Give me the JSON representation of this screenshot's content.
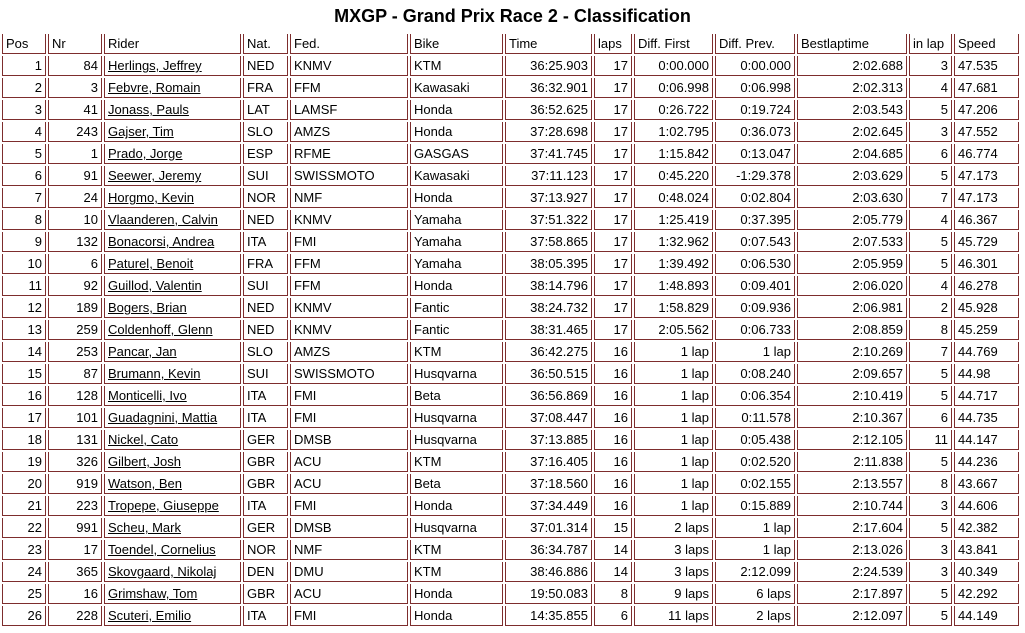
{
  "title": "MXGP - Grand Prix Race 2 - Classification",
  "colors": {
    "border": "#7d2d2d",
    "text": "#000000",
    "background": "#ffffff"
  },
  "table": {
    "columns": [
      {
        "key": "pos",
        "label": "Pos",
        "align": "right"
      },
      {
        "key": "nr",
        "label": "Nr",
        "align": "right"
      },
      {
        "key": "rider",
        "label": "Rider",
        "align": "left"
      },
      {
        "key": "nat",
        "label": "Nat.",
        "align": "left"
      },
      {
        "key": "fed",
        "label": "Fed.",
        "align": "left"
      },
      {
        "key": "bike",
        "label": "Bike",
        "align": "left"
      },
      {
        "key": "time",
        "label": "Time",
        "align": "right"
      },
      {
        "key": "laps",
        "label": "laps",
        "align": "right"
      },
      {
        "key": "diff_first",
        "label": "Diff. First",
        "align": "right"
      },
      {
        "key": "diff_prev",
        "label": "Diff. Prev.",
        "align": "right"
      },
      {
        "key": "bestlaptime",
        "label": "Bestlaptime",
        "align": "right"
      },
      {
        "key": "in_lap",
        "label": "in lap",
        "align": "right"
      },
      {
        "key": "speed",
        "label": "Speed",
        "align": "left"
      }
    ],
    "rows": [
      {
        "pos": "1",
        "nr": "84",
        "rider": "Herlings, Jeffrey",
        "nat": "NED",
        "fed": "KNMV",
        "bike": "KTM",
        "time": "36:25.903",
        "laps": "17",
        "diff_first": "0:00.000",
        "diff_prev": "0:00.000",
        "bestlaptime": "2:02.688",
        "in_lap": "3",
        "speed": "47.535"
      },
      {
        "pos": "2",
        "nr": "3",
        "rider": "Febvre, Romain",
        "nat": "FRA",
        "fed": "FFM",
        "bike": "Kawasaki",
        "time": "36:32.901",
        "laps": "17",
        "diff_first": "0:06.998",
        "diff_prev": "0:06.998",
        "bestlaptime": "2:02.313",
        "in_lap": "4",
        "speed": "47.681"
      },
      {
        "pos": "3",
        "nr": "41",
        "rider": "Jonass, Pauls",
        "nat": "LAT",
        "fed": "LAMSF",
        "bike": "Honda",
        "time": "36:52.625",
        "laps": "17",
        "diff_first": "0:26.722",
        "diff_prev": "0:19.724",
        "bestlaptime": "2:03.543",
        "in_lap": "5",
        "speed": "47.206"
      },
      {
        "pos": "4",
        "nr": "243",
        "rider": "Gajser, Tim",
        "nat": "SLO",
        "fed": "AMZS",
        "bike": "Honda",
        "time": "37:28.698",
        "laps": "17",
        "diff_first": "1:02.795",
        "diff_prev": "0:36.073",
        "bestlaptime": "2:02.645",
        "in_lap": "3",
        "speed": "47.552"
      },
      {
        "pos": "5",
        "nr": "1",
        "rider": "Prado, Jorge",
        "nat": "ESP",
        "fed": "RFME",
        "bike": "GASGAS",
        "time": "37:41.745",
        "laps": "17",
        "diff_first": "1:15.842",
        "diff_prev": "0:13.047",
        "bestlaptime": "2:04.685",
        "in_lap": "6",
        "speed": "46.774"
      },
      {
        "pos": "6",
        "nr": "91",
        "rider": "Seewer, Jeremy",
        "nat": "SUI",
        "fed": "SWISSMOTO",
        "bike": "Kawasaki",
        "time": "37:11.123",
        "laps": "17",
        "diff_first": "0:45.220",
        "diff_prev": "-1:29.378",
        "bestlaptime": "2:03.629",
        "in_lap": "5",
        "speed": "47.173"
      },
      {
        "pos": "7",
        "nr": "24",
        "rider": "Horgmo, Kevin",
        "nat": "NOR",
        "fed": "NMF",
        "bike": "Honda",
        "time": "37:13.927",
        "laps": "17",
        "diff_first": "0:48.024",
        "diff_prev": "0:02.804",
        "bestlaptime": "2:03.630",
        "in_lap": "7",
        "speed": "47.173"
      },
      {
        "pos": "8",
        "nr": "10",
        "rider": "Vlaanderen, Calvin",
        "nat": "NED",
        "fed": "KNMV",
        "bike": "Yamaha",
        "time": "37:51.322",
        "laps": "17",
        "diff_first": "1:25.419",
        "diff_prev": "0:37.395",
        "bestlaptime": "2:05.779",
        "in_lap": "4",
        "speed": "46.367"
      },
      {
        "pos": "9",
        "nr": "132",
        "rider": "Bonacorsi, Andrea",
        "nat": "ITA",
        "fed": "FMI",
        "bike": "Yamaha",
        "time": "37:58.865",
        "laps": "17",
        "diff_first": "1:32.962",
        "diff_prev": "0:07.543",
        "bestlaptime": "2:07.533",
        "in_lap": "5",
        "speed": "45.729"
      },
      {
        "pos": "10",
        "nr": "6",
        "rider": "Paturel, Benoit",
        "nat": "FRA",
        "fed": "FFM",
        "bike": "Yamaha",
        "time": "38:05.395",
        "laps": "17",
        "diff_first": "1:39.492",
        "diff_prev": "0:06.530",
        "bestlaptime": "2:05.959",
        "in_lap": "5",
        "speed": "46.301"
      },
      {
        "pos": "11",
        "nr": "92",
        "rider": "Guillod, Valentin",
        "nat": "SUI",
        "fed": "FFM",
        "bike": "Honda",
        "time": "38:14.796",
        "laps": "17",
        "diff_first": "1:48.893",
        "diff_prev": "0:09.401",
        "bestlaptime": "2:06.020",
        "in_lap": "4",
        "speed": "46.278"
      },
      {
        "pos": "12",
        "nr": "189",
        "rider": "Bogers, Brian",
        "nat": "NED",
        "fed": "KNMV",
        "bike": "Fantic",
        "time": "38:24.732",
        "laps": "17",
        "diff_first": "1:58.829",
        "diff_prev": "0:09.936",
        "bestlaptime": "2:06.981",
        "in_lap": "2",
        "speed": "45.928"
      },
      {
        "pos": "13",
        "nr": "259",
        "rider": "Coldenhoff, Glenn",
        "nat": "NED",
        "fed": "KNMV",
        "bike": "Fantic",
        "time": "38:31.465",
        "laps": "17",
        "diff_first": "2:05.562",
        "diff_prev": "0:06.733",
        "bestlaptime": "2:08.859",
        "in_lap": "8",
        "speed": "45.259"
      },
      {
        "pos": "14",
        "nr": "253",
        "rider": "Pancar, Jan",
        "nat": "SLO",
        "fed": "AMZS",
        "bike": "KTM",
        "time": "36:42.275",
        "laps": "16",
        "diff_first": "1 lap",
        "diff_prev": "1 lap",
        "bestlaptime": "2:10.269",
        "in_lap": "7",
        "speed": "44.769"
      },
      {
        "pos": "15",
        "nr": "87",
        "rider": "Brumann, Kevin",
        "nat": "SUI",
        "fed": "SWISSMOTO",
        "bike": "Husqvarna",
        "time": "36:50.515",
        "laps": "16",
        "diff_first": "1 lap",
        "diff_prev": "0:08.240",
        "bestlaptime": "2:09.657",
        "in_lap": "5",
        "speed": "44.98"
      },
      {
        "pos": "16",
        "nr": "128",
        "rider": "Monticelli, Ivo",
        "nat": "ITA",
        "fed": "FMI",
        "bike": "Beta",
        "time": "36:56.869",
        "laps": "16",
        "diff_first": "1 lap",
        "diff_prev": "0:06.354",
        "bestlaptime": "2:10.419",
        "in_lap": "5",
        "speed": "44.717"
      },
      {
        "pos": "17",
        "nr": "101",
        "rider": "Guadagnini, Mattia",
        "nat": "ITA",
        "fed": "FMI",
        "bike": "Husqvarna",
        "time": "37:08.447",
        "laps": "16",
        "diff_first": "1 lap",
        "diff_prev": "0:11.578",
        "bestlaptime": "2:10.367",
        "in_lap": "6",
        "speed": "44.735"
      },
      {
        "pos": "18",
        "nr": "131",
        "rider": "Nickel, Cato",
        "nat": "GER",
        "fed": "DMSB",
        "bike": "Husqvarna",
        "time": "37:13.885",
        "laps": "16",
        "diff_first": "1 lap",
        "diff_prev": "0:05.438",
        "bestlaptime": "2:12.105",
        "in_lap": "11",
        "speed": "44.147"
      },
      {
        "pos": "19",
        "nr": "326",
        "rider": "Gilbert, Josh",
        "nat": "GBR",
        "fed": "ACU",
        "bike": "KTM",
        "time": "37:16.405",
        "laps": "16",
        "diff_first": "1 lap",
        "diff_prev": "0:02.520",
        "bestlaptime": "2:11.838",
        "in_lap": "5",
        "speed": "44.236"
      },
      {
        "pos": "20",
        "nr": "919",
        "rider": "Watson, Ben",
        "nat": "GBR",
        "fed": "ACU",
        "bike": "Beta",
        "time": "37:18.560",
        "laps": "16",
        "diff_first": "1 lap",
        "diff_prev": "0:02.155",
        "bestlaptime": "2:13.557",
        "in_lap": "8",
        "speed": "43.667"
      },
      {
        "pos": "21",
        "nr": "223",
        "rider": "Tropepe, Giuseppe",
        "nat": "ITA",
        "fed": "FMI",
        "bike": "Honda",
        "time": "37:34.449",
        "laps": "16",
        "diff_first": "1 lap",
        "diff_prev": "0:15.889",
        "bestlaptime": "2:10.744",
        "in_lap": "3",
        "speed": "44.606"
      },
      {
        "pos": "22",
        "nr": "991",
        "rider": "Scheu, Mark",
        "nat": "GER",
        "fed": "DMSB",
        "bike": "Husqvarna",
        "time": "37:01.314",
        "laps": "15",
        "diff_first": "2 laps",
        "diff_prev": "1 lap",
        "bestlaptime": "2:17.604",
        "in_lap": "5",
        "speed": "42.382"
      },
      {
        "pos": "23",
        "nr": "17",
        "rider": "Toendel, Cornelius",
        "nat": "NOR",
        "fed": "NMF",
        "bike": "KTM",
        "time": "36:34.787",
        "laps": "14",
        "diff_first": "3 laps",
        "diff_prev": "1 lap",
        "bestlaptime": "2:13.026",
        "in_lap": "3",
        "speed": "43.841"
      },
      {
        "pos": "24",
        "nr": "365",
        "rider": "Skovgaard, Nikolaj",
        "nat": "DEN",
        "fed": "DMU",
        "bike": "KTM",
        "time": "38:46.886",
        "laps": "14",
        "diff_first": "3 laps",
        "diff_prev": "2:12.099",
        "bestlaptime": "2:24.539",
        "in_lap": "3",
        "speed": "40.349"
      },
      {
        "pos": "25",
        "nr": "16",
        "rider": "Grimshaw, Tom",
        "nat": "GBR",
        "fed": "ACU",
        "bike": "Honda",
        "time": "19:50.083",
        "laps": "8",
        "diff_first": "9 laps",
        "diff_prev": "6 laps",
        "bestlaptime": "2:17.897",
        "in_lap": "5",
        "speed": "42.292"
      },
      {
        "pos": "26",
        "nr": "228",
        "rider": "Scuteri, Emilio",
        "nat": "ITA",
        "fed": "FMI",
        "bike": "Honda",
        "time": "14:35.855",
        "laps": "6",
        "diff_first": "11 laps",
        "diff_prev": "2 laps",
        "bestlaptime": "2:12.097",
        "in_lap": "5",
        "speed": "44.149"
      }
    ]
  }
}
